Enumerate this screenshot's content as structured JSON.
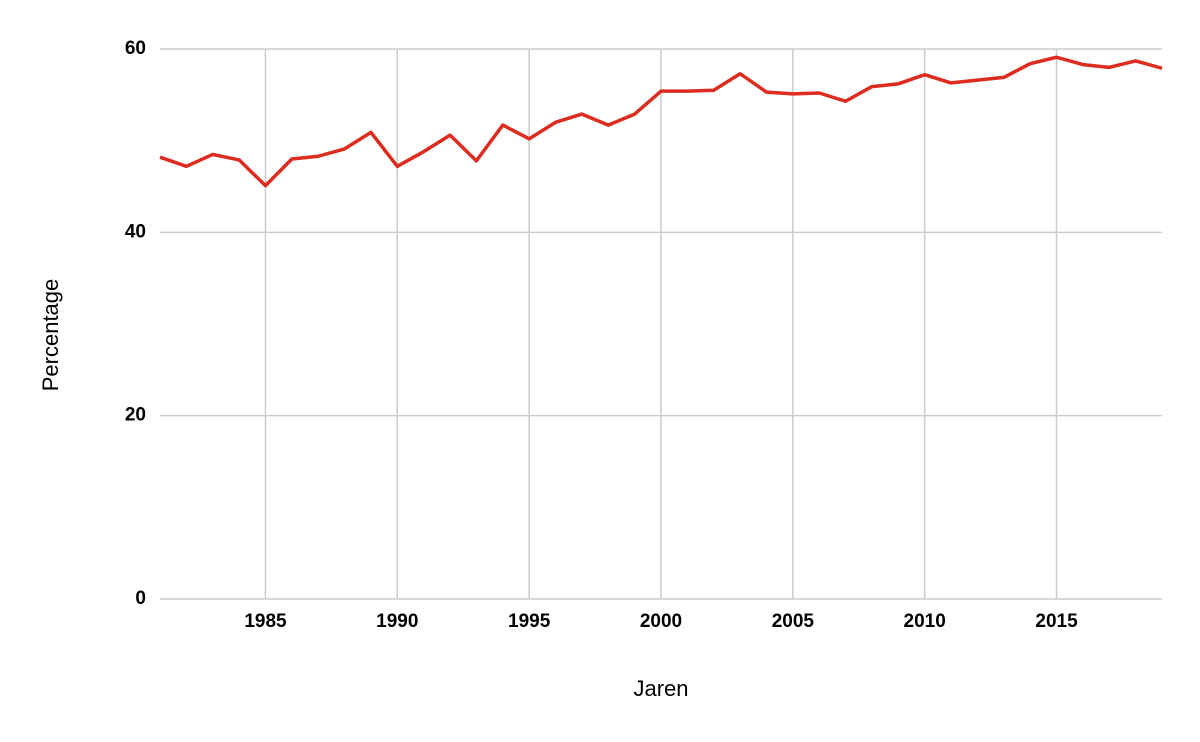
{
  "chart_data": {
    "type": "line",
    "x_label": "Jaren",
    "y_label": "Percentage",
    "x": [
      1981,
      1982,
      1983,
      1984,
      1985,
      1986,
      1987,
      1988,
      1989,
      1990,
      1991,
      1992,
      1993,
      1994,
      1995,
      1996,
      1997,
      1998,
      1999,
      2000,
      2001,
      2002,
      2003,
      2004,
      2005,
      2006,
      2007,
      2008,
      2009,
      2010,
      2011,
      2012,
      2013,
      2014,
      2015,
      2016,
      2017,
      2018,
      2019
    ],
    "values": [
      48.2,
      47.2,
      48.5,
      47.9,
      45.1,
      48.0,
      48.3,
      49.1,
      50.9,
      47.2,
      48.8,
      50.6,
      47.8,
      51.7,
      50.2,
      52.0,
      52.9,
      51.7,
      52.9,
      55.4,
      55.4,
      55.5,
      57.3,
      55.3,
      55.1,
      55.2,
      54.3,
      55.9,
      56.2,
      57.2,
      56.3,
      56.6,
      56.9,
      58.4,
      59.1,
      58.3,
      58.0,
      58.7,
      57.9
    ],
    "color": "#dd2c1f",
    "xlim": [
      1981,
      2019
    ],
    "xticks": [
      1985,
      1990,
      1995,
      2000,
      2005,
      2010,
      2015
    ],
    "ylim": [
      0,
      60
    ],
    "yticks": [
      0,
      20,
      40,
      60
    ],
    "grid": true
  }
}
